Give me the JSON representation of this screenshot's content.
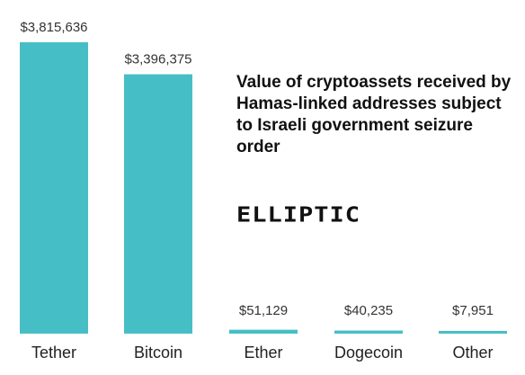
{
  "chart_data": {
    "type": "bar",
    "title": "Value of cryptoassets received by Hamas-linked addresses subject to Israeli government seizure order",
    "categories": [
      "Tether",
      "Bitcoin",
      "Ether",
      "Dogecoin",
      "Other"
    ],
    "values": [
      3815636,
      3396375,
      51129,
      40235,
      7951
    ],
    "value_labels": [
      "$3,815,636",
      "$3,396,375",
      "$51,129",
      "$40,235",
      "$7,951"
    ],
    "xlabel": "",
    "ylabel": "",
    "ylim": [
      0,
      3815636
    ],
    "grid": false,
    "bar_color": "#45bfc5"
  },
  "brand": {
    "logo_text": "ELLIPTIC"
  }
}
